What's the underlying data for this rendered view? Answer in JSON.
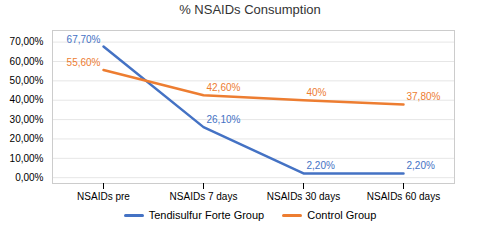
{
  "chart_data": {
    "type": "line",
    "title": "% NSAIDs Consumption",
    "categories": [
      "NSAIDs pre",
      "NSAIDs 7 days",
      "NSAIDs 30 days",
      "NSAIDs 60 days"
    ],
    "series": [
      {
        "name": "Tendisulfur Forte Group",
        "color": "#4472C4",
        "values": [
          67.7,
          26.1,
          2.2,
          2.2
        ],
        "value_labels": [
          "67,70%",
          "26,10%",
          "2,20%",
          "2,20%"
        ]
      },
      {
        "name": "Control Group",
        "color": "#ED7D31",
        "values": [
          55.6,
          42.6,
          40.0,
          37.8
        ],
        "value_labels": [
          "55,60%",
          "42,60%",
          "40%",
          "37,80%"
        ]
      }
    ],
    "ylim": [
      -3,
      76
    ],
    "yticks": [
      {
        "value": 0,
        "label": "0,00%"
      },
      {
        "value": 10,
        "label": "10,00%"
      },
      {
        "value": 20,
        "label": "20,00%"
      },
      {
        "value": 30,
        "label": "30,00%"
      },
      {
        "value": 40,
        "label": "40,00%"
      },
      {
        "value": 50,
        "label": "50,00%"
      },
      {
        "value": 60,
        "label": "60,00%"
      },
      {
        "value": 70,
        "label": "70,00%"
      }
    ],
    "grid": true,
    "legend": "bottom",
    "data_labels": true
  }
}
